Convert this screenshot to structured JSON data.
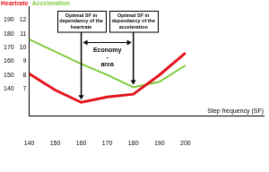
{
  "chart_data": {
    "type": "line",
    "x": [
      140,
      150,
      160,
      170,
      180,
      190,
      200
    ],
    "xlim": [
      140,
      230
    ],
    "xticks": [
      140,
      150,
      160,
      170,
      180,
      190,
      200
    ],
    "x_label": "Step frequency (SF)",
    "ylim": [
      120,
      200
    ],
    "yticks": [
      140,
      150,
      160,
      170,
      180,
      190
    ],
    "y2lim": [
      5,
      13
    ],
    "y2ticks": [
      7,
      8,
      9,
      10,
      11,
      12
    ],
    "grid": false,
    "series": [
      {
        "name": "Heartrate",
        "color": "#e3141b",
        "values": [
          151,
          139,
          130,
          134,
          136,
          150,
          166
        ]
      },
      {
        "name": "Acceleration",
        "color": "#7dcc3a",
        "axis": "y2",
        "values": [
          10.6,
          9.7,
          8.8,
          8.0,
          7.1,
          7.5,
          8.7
        ]
      }
    ],
    "annotations": [
      {
        "text": "Optimal SF in dependancy of the heartrate",
        "x": 160,
        "series": "Heartrate"
      },
      {
        "text": "Optimal SF in dependancy of the acceleration",
        "x": 180,
        "series": "Acceleration"
      }
    ],
    "economy_area": [
      "Economy",
      "-",
      "area"
    ]
  }
}
